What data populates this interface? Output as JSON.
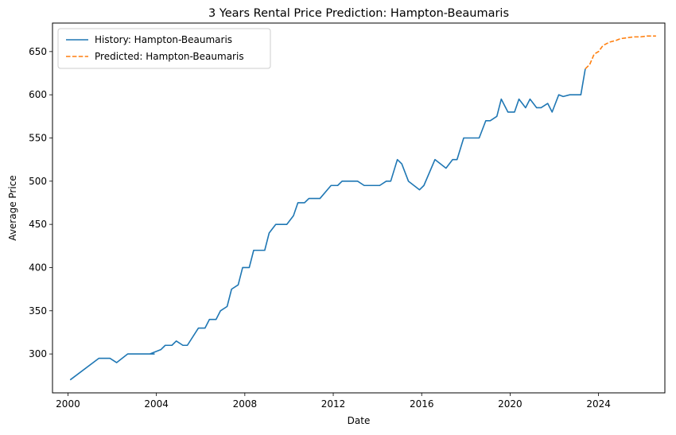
{
  "chart_data": {
    "type": "line",
    "title": "3 Years Rental Price Prediction: Hampton-Beaumaris",
    "xlabel": "Date",
    "ylabel": "Average Price",
    "xlim": [
      1999.3,
      2027.0
    ],
    "ylim": [
      255,
      683
    ],
    "x_ticks": [
      2000,
      2004,
      2008,
      2012,
      2016,
      2020,
      2024
    ],
    "y_ticks": [
      300,
      350,
      400,
      450,
      500,
      550,
      600,
      650
    ],
    "grid": false,
    "legend_position": "upper-left",
    "series": [
      {
        "name": "History: Hampton-Beaumaris",
        "color": "#1f77b4",
        "style": "solid",
        "points": [
          [
            2000.1,
            270
          ],
          [
            2001.4,
            295
          ],
          [
            2001.9,
            295
          ],
          [
            2002.2,
            290
          ],
          [
            2002.7,
            300
          ],
          [
            2003.2,
            300
          ],
          [
            2003.7,
            300
          ],
          [
            2003.9,
            300
          ],
          [
            2003.2,
            300
          ],
          [
            2003.7,
            300
          ],
          [
            2004.2,
            305
          ],
          [
            2004.4,
            310
          ],
          [
            2004.7,
            310
          ],
          [
            2004.9,
            315
          ],
          [
            2005.2,
            310
          ],
          [
            2005.4,
            310
          ],
          [
            2005.9,
            330
          ],
          [
            2006.2,
            330
          ],
          [
            2006.4,
            340
          ],
          [
            2006.7,
            340
          ],
          [
            2006.9,
            350
          ],
          [
            2007.2,
            355
          ],
          [
            2007.4,
            375
          ],
          [
            2007.7,
            380
          ],
          [
            2007.9,
            400
          ],
          [
            2008.2,
            400
          ],
          [
            2008.4,
            420
          ],
          [
            2008.9,
            420
          ],
          [
            2009.1,
            440
          ],
          [
            2009.4,
            450
          ],
          [
            2009.9,
            450
          ],
          [
            2010.2,
            460
          ],
          [
            2010.4,
            475
          ],
          [
            2010.7,
            475
          ],
          [
            2010.9,
            480
          ],
          [
            2011.4,
            480
          ],
          [
            2011.9,
            495
          ],
          [
            2012.2,
            495
          ],
          [
            2012.4,
            500
          ],
          [
            2013.1,
            500
          ],
          [
            2013.4,
            495
          ],
          [
            2014.1,
            495
          ],
          [
            2014.4,
            500
          ],
          [
            2014.6,
            500
          ],
          [
            2014.9,
            525
          ],
          [
            2015.1,
            520
          ],
          [
            2015.4,
            500
          ],
          [
            2015.9,
            490
          ],
          [
            2016.1,
            495
          ],
          [
            2016.6,
            525
          ],
          [
            2017.1,
            515
          ],
          [
            2017.4,
            525
          ],
          [
            2017.6,
            525
          ],
          [
            2017.9,
            550
          ],
          [
            2018.6,
            550
          ],
          [
            2018.9,
            570
          ],
          [
            2019.1,
            570
          ],
          [
            2019.4,
            575
          ],
          [
            2019.6,
            595
          ],
          [
            2019.9,
            580
          ],
          [
            2020.2,
            580
          ],
          [
            2020.4,
            595
          ],
          [
            2020.7,
            585
          ],
          [
            2020.9,
            595
          ],
          [
            2021.2,
            585
          ],
          [
            2021.4,
            585
          ],
          [
            2021.7,
            590
          ],
          [
            2021.9,
            580
          ],
          [
            2022.2,
            600
          ],
          [
            2022.4,
            598
          ],
          [
            2022.7,
            600
          ],
          [
            2023.2,
            600
          ],
          [
            2023.4,
            630
          ]
        ]
      },
      {
        "name": "Predicted: Hampton-Beaumaris",
        "color": "#ff7f0e",
        "style": "dashed",
        "points": [
          [
            2023.4,
            630
          ],
          [
            2023.6,
            635
          ],
          [
            2023.8,
            647
          ],
          [
            2024.0,
            650
          ],
          [
            2024.2,
            657
          ],
          [
            2024.5,
            661
          ],
          [
            2024.8,
            663
          ],
          [
            2025.0,
            665
          ],
          [
            2025.3,
            666
          ],
          [
            2025.6,
            667
          ],
          [
            2025.9,
            667
          ],
          [
            2026.2,
            668
          ],
          [
            2026.6,
            668
          ]
        ]
      }
    ]
  }
}
